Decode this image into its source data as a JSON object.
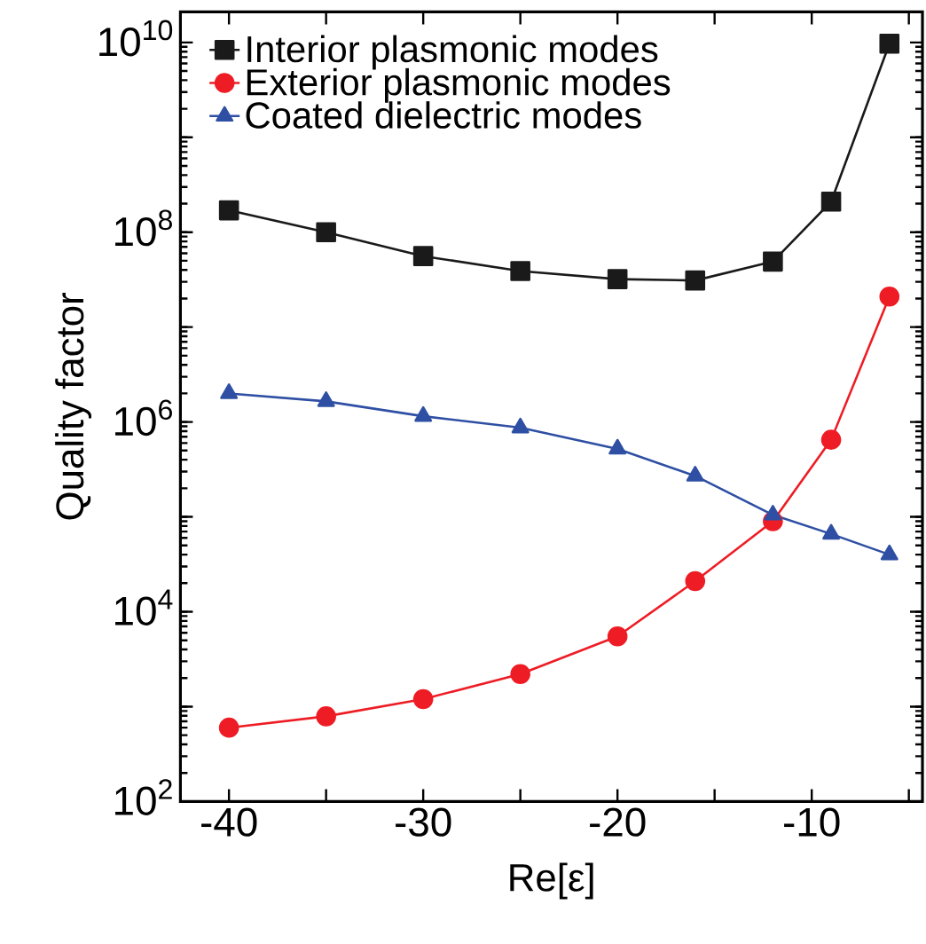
{
  "chart_data": {
    "type": "line",
    "xlabel": "Re[ε]",
    "ylabel": "Quality factor",
    "log": "y",
    "legend": "top left",
    "marker": "circle",
    "line_style": "solid",
    "xlim": [
      -42.5,
      -4.3
    ],
    "ylim": [
      100,
      21000000000
    ],
    "xticks": [
      -40,
      {
        "value": -35,
        "label": null
      },
      -30,
      {
        "value": -25,
        "label": null
      },
      -20,
      {
        "value": -15,
        "label": null
      },
      -10,
      {
        "value": -5,
        "label": null
      }
    ],
    "yticks": [
      {
        "value": 100,
        "label": "10$^{2}$"
      },
      {
        "value": 1000,
        "label": null
      },
      {
        "value": 10000,
        "label": "10$^{4}$"
      },
      {
        "value": 100000,
        "label": null
      },
      {
        "value": 1000000,
        "label": "10$^{6}$"
      },
      {
        "value": 10000000,
        "label": null
      },
      {
        "value": 100000000,
        "label": "10$^{8}$"
      },
      {
        "value": 1000000000,
        "label": null
      },
      {
        "value": 10000000000,
        "label": "10$^{10}$"
      }
    ],
    "x": [
      -40,
      -35,
      -30,
      -25,
      -20,
      -16,
      -12,
      -9,
      -6
    ],
    "series": [
      {
        "name": "Interior plasmonic modes",
        "color": "#1a1a1a",
        "marker": "square",
        "values": [
          170000000,
          100000000,
          56000000,
          39000000,
          32000000,
          31000000,
          49000000,
          210000000,
          9700000000
        ]
      },
      {
        "name": "Exterior plasmonic modes",
        "color": "#ee1c25",
        "marker": "circle",
        "values": [
          600,
          790,
          1200,
          2200,
          5500,
          21000,
          90000,
          650000,
          21000000
        ]
      },
      {
        "name": "Coated dielectric modes",
        "color": "#2e4fa3",
        "marker": "triangle",
        "values": [
          2000000,
          1650000,
          1150000,
          870000,
          520000,
          270000,
          105000,
          66000,
          40000
        ]
      }
    ]
  }
}
